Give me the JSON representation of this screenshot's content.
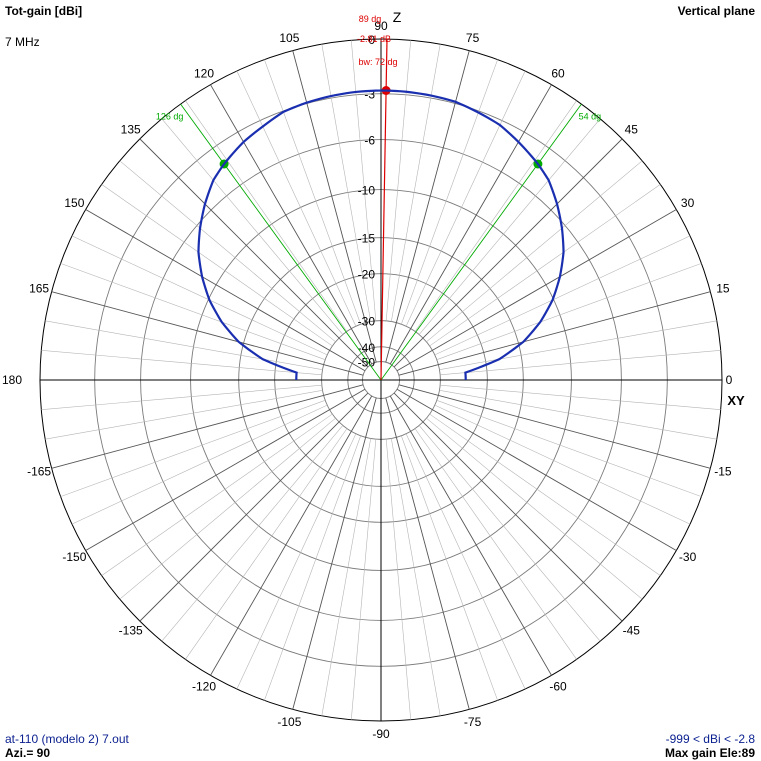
{
  "header": {
    "title": "Tot-gain [dBi]",
    "frequency": "7 MHz",
    "plane": "Vertical plane"
  },
  "footer": {
    "file": "at-110 (modelo 2) 7.out",
    "azimuth": "Azi.= 90",
    "range": "-999 < dBi < -2.8",
    "max_gain": "Max gain Ele:89"
  },
  "colors": {
    "pattern": "#1a2fb0",
    "beam_marker": "#dd0000",
    "beamwidth_marker": "#00aa00",
    "grid": "#7a7a7a",
    "axes": "#000000"
  },
  "chart_data": {
    "type": "polar",
    "angle_unit": "degrees",
    "angle_ticks": [
      0,
      15,
      30,
      45,
      60,
      75,
      90,
      105,
      120,
      135,
      150,
      165,
      180,
      -165,
      -150,
      -135,
      -120,
      -105,
      -90,
      -75,
      -60,
      -45,
      -30,
      -15
    ],
    "angle_tick_labels": [
      "0",
      "15",
      "30",
      "45",
      "60",
      "75",
      "90",
      "105",
      "120",
      "135",
      "150",
      "165",
      "180",
      "-165",
      "-150",
      "-135",
      "-120",
      "-105",
      "-90",
      "-75",
      "-60",
      "-45",
      "-30",
      "-15"
    ],
    "radial_ticks": [
      0,
      -3,
      -6,
      -10,
      -15,
      -20,
      -30,
      -40,
      -50
    ],
    "radial_tick_labels": [
      "0",
      "-3",
      "-6",
      "-10",
      "-15",
      "-20",
      "-30",
      "-40",
      "-50"
    ],
    "axis_labels": {
      "vertical": "Z",
      "horizontal": "XY"
    },
    "series": [
      {
        "elevation": [
          0,
          5,
          10,
          15,
          20,
          25,
          30,
          35,
          40,
          45,
          50,
          54,
          60,
          65,
          70,
          75,
          80,
          85,
          89,
          95,
          100,
          105,
          110,
          115,
          120,
          126,
          130,
          135,
          140,
          145,
          150,
          155,
          160,
          165,
          170,
          175,
          180
        ],
        "gain_dbi": [
          -999,
          -23.9,
          -17.9,
          -14.4,
          -12,
          -10.1,
          -8.6,
          -7.3,
          -6.3,
          -5.4,
          -4.6,
          -4.2,
          -3.7,
          -3.3,
          -3.1,
          -2.9,
          -2.85,
          -2.82,
          -2.81,
          -2.83,
          -2.88,
          -2.95,
          -3.06,
          -3.4,
          -3.7,
          -4.2,
          -4.6,
          -5.4,
          -6.3,
          -7.3,
          -8.6,
          -10.1,
          -12,
          -14.4,
          -17.9,
          -23.9,
          -999
        ]
      }
    ],
    "max_gain": {
      "angle": 89,
      "angle_label": "89 dg",
      "value": -2.81,
      "value_label": "-2.81 dB"
    },
    "beamwidth": {
      "label": "bw: 72 dg",
      "lower_angle": 54,
      "lower_label": "54 dg",
      "upper_angle": 126,
      "upper_label": "126 dg"
    }
  }
}
